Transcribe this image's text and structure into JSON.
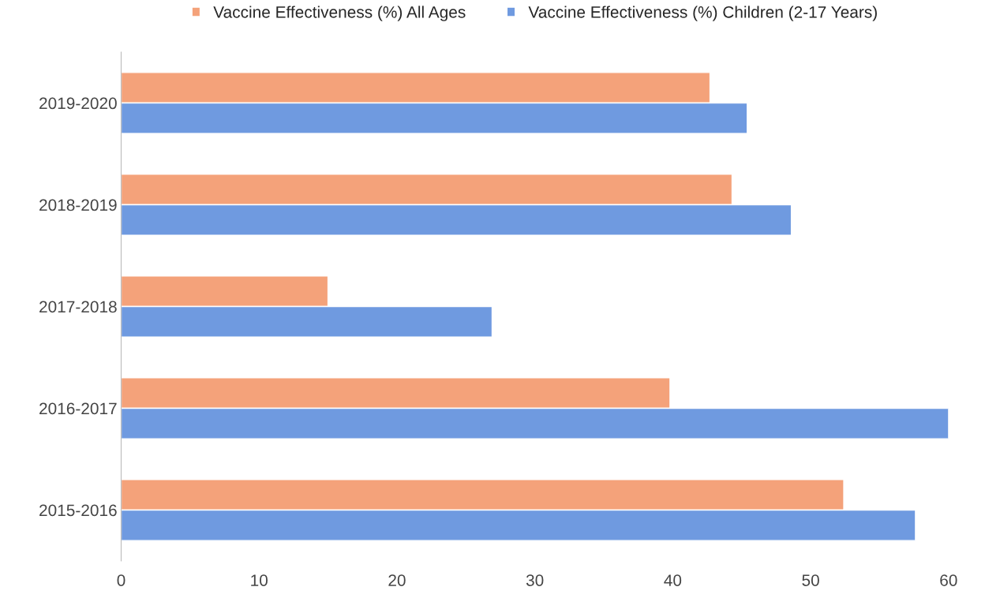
{
  "chart_data": {
    "type": "bar",
    "orientation": "horizontal",
    "categories": [
      "2019-2020",
      "2018-2019",
      "2017-2018",
      "2016-2017",
      "2015-2016"
    ],
    "series": [
      {
        "name": "Vaccine Effectiveness (%) All Ages",
        "color": "#f4a27a",
        "values": [
          42.7,
          44.3,
          15.0,
          39.8,
          52.4
        ]
      },
      {
        "name": "Vaccine Effectiveness (%) Children (2-17 Years)",
        "color": "#6f9ae0",
        "values": [
          45.4,
          48.6,
          26.9,
          60,
          57.6
        ]
      }
    ],
    "xlim": [
      0,
      60
    ],
    "xticks": [
      0,
      10,
      20,
      30,
      40,
      50,
      60
    ],
    "grid": false,
    "legend": "top"
  }
}
